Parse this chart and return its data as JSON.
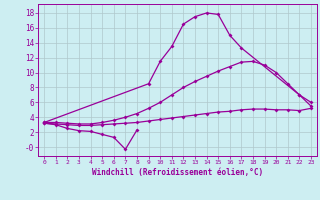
{
  "xlabel": "Windchill (Refroidissement éolien,°C)",
  "bg_color": "#cdeef2",
  "line_color": "#990099",
  "grid_color": "#b0c8cc",
  "xlim": [
    -0.5,
    23.5
  ],
  "ylim": [
    -1.2,
    19.2
  ],
  "xticks": [
    0,
    1,
    2,
    3,
    4,
    5,
    6,
    7,
    8,
    9,
    10,
    11,
    12,
    13,
    14,
    15,
    16,
    17,
    18,
    19,
    20,
    21,
    22,
    23
  ],
  "yticks": [
    0,
    2,
    4,
    6,
    8,
    10,
    12,
    14,
    16,
    18
  ],
  "ytick_labels": [
    "-0",
    "2",
    "4",
    "6",
    "8",
    "10",
    "12",
    "14",
    "16",
    "18"
  ],
  "series": [
    {
      "x": [
        0,
        1,
        2,
        3,
        4,
        5,
        6,
        7,
        8
      ],
      "y": [
        3.2,
        3.0,
        2.5,
        2.2,
        2.1,
        1.7,
        1.3,
        -0.3,
        2.3
      ]
    },
    {
      "x": [
        0,
        1,
        2,
        3,
        4,
        5,
        6,
        7,
        8,
        9,
        10,
        11,
        12,
        13,
        14,
        15,
        16,
        17,
        18,
        19,
        20,
        21,
        22,
        23
      ],
      "y": [
        3.2,
        3.1,
        3.0,
        2.9,
        2.9,
        3.0,
        3.1,
        3.2,
        3.3,
        3.5,
        3.7,
        3.9,
        4.1,
        4.3,
        4.5,
        4.7,
        4.8,
        5.0,
        5.1,
        5.1,
        5.0,
        5.0,
        4.9,
        5.2
      ]
    },
    {
      "x": [
        0,
        1,
        2,
        3,
        4,
        5,
        6,
        7,
        8,
        9,
        10,
        11,
        12,
        13,
        14,
        15,
        16,
        17,
        18,
        19,
        20,
        21,
        22,
        23
      ],
      "y": [
        3.3,
        3.3,
        3.2,
        3.1,
        3.1,
        3.3,
        3.6,
        4.0,
        4.5,
        5.2,
        6.0,
        7.0,
        8.0,
        8.8,
        9.5,
        10.2,
        10.8,
        11.4,
        11.5,
        11.0,
        10.0,
        8.5,
        7.0,
        6.0
      ]
    },
    {
      "x": [
        0,
        9,
        10,
        11,
        12,
        13,
        14,
        15,
        16,
        17,
        22,
        23
      ],
      "y": [
        3.3,
        8.5,
        11.5,
        13.5,
        16.5,
        17.5,
        18.0,
        17.8,
        15.0,
        13.3,
        7.0,
        5.5
      ]
    }
  ]
}
